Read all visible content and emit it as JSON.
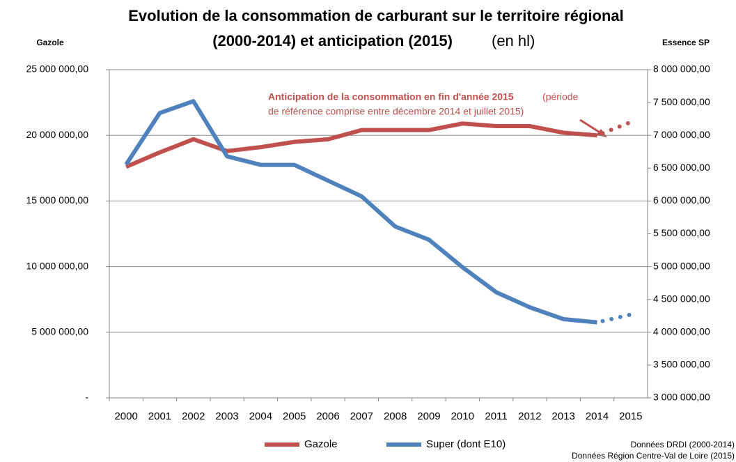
{
  "chart_data": {
    "type": "line",
    "title": [
      "Evolution de la consommation de carburant sur le territoire régional",
      "(2000-2014) et anticipation (2015)"
    ],
    "title_unit": "(en hl)",
    "y_label": "Gazole",
    "y2_label": "Essence SP",
    "categories": [
      "2000",
      "2001",
      "2002",
      "2003",
      "2004",
      "2005",
      "2006",
      "2007",
      "2008",
      "2009",
      "2010",
      "2011",
      "2012",
      "2013",
      "2014",
      "2015"
    ],
    "series": [
      {
        "name": "Gazole",
        "color": "#c0504d",
        "values": [
          17600000,
          18700000,
          19700000,
          18800000,
          19100000,
          19500000,
          19700000,
          20400000,
          20400000,
          20400000,
          20900000,
          20700000,
          20700000,
          20200000,
          20000000,
          21000000
        ]
      },
      {
        "name": "Super (dont E10)",
        "color": "#4f81bd",
        "axis": "y2",
        "values": [
          6556000,
          7340000,
          7520000,
          6680000,
          6550000,
          6550000,
          6310000,
          6070000,
          5610000,
          5410000,
          4990000,
          4610000,
          4380000,
          4200000,
          4150000,
          4270000
        ]
      }
    ],
    "ylim": [
      0,
      25000000
    ],
    "yticks": [
      {
        "value": 0,
        "label": "-"
      },
      {
        "value": 5000000,
        "label": "5 000 000,00"
      },
      {
        "value": 10000000,
        "label": "10 000 000,00"
      },
      {
        "value": 15000000,
        "label": "15 000 000,00"
      },
      {
        "value": 20000000,
        "label": "20 000 000,00"
      },
      {
        "value": 25000000,
        "label": "25 000 000,00"
      }
    ],
    "y2lim": [
      3000000,
      8000000
    ],
    "y2ticks": [
      {
        "value": 3000000,
        "label": "3 000 000,00"
      },
      {
        "value": 3500000,
        "label": "3 500 000,00"
      },
      {
        "value": 4000000,
        "label": "4 000 000,00"
      },
      {
        "value": 4500000,
        "label": "4 500 000,00"
      },
      {
        "value": 5000000,
        "label": "5 000 000,00"
      },
      {
        "value": 5500000,
        "label": "5 500 000,00"
      },
      {
        "value": 6000000,
        "label": "6 000 000,00"
      },
      {
        "value": 6500000,
        "label": "6 500 000,00"
      },
      {
        "value": 7000000,
        "label": "7 000 000,00"
      },
      {
        "value": 7500000,
        "label": "7 500 000,00"
      },
      {
        "value": 8000000,
        "label": "8 000 000,00"
      }
    ],
    "grid": true,
    "annotation": {
      "bold": "Anticipation de la consommation en fin d'année 2015",
      "text": [
        " (période",
        "de référence comprise entre décembre 2014 et juillet 2015)"
      ]
    },
    "source": [
      "Données DRDI (2000-2014)",
      "Données Région Centre-Val de Loire (2015)"
    ]
  }
}
